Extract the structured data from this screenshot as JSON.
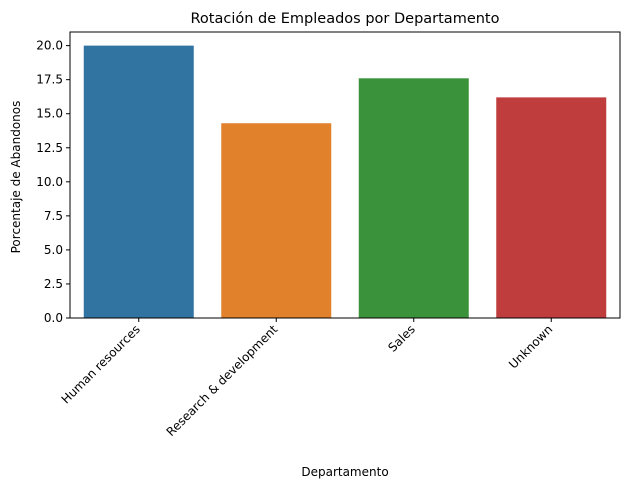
{
  "chart_data": {
    "type": "bar",
    "title": "Rotación de Empleados por Departamento",
    "xlabel": "Departamento",
    "ylabel": "Porcentaje de Abandonos",
    "categories": [
      "Human resources",
      "Research & development",
      "Sales",
      "Unknown"
    ],
    "values": [
      20.0,
      14.3,
      17.6,
      16.2
    ],
    "colors": [
      "#3274a1",
      "#e1812c",
      "#3a923a",
      "#c03d3e"
    ],
    "ylim": [
      0,
      21
    ],
    "yticks": [
      0.0,
      2.5,
      5.0,
      7.5,
      10.0,
      12.5,
      15.0,
      17.5,
      20.0
    ],
    "ytick_labels": [
      "0.0",
      "2.5",
      "5.0",
      "7.5",
      "10.0",
      "12.5",
      "15.0",
      "17.5",
      "20.0"
    ],
    "grid": false,
    "legend": "none"
  }
}
